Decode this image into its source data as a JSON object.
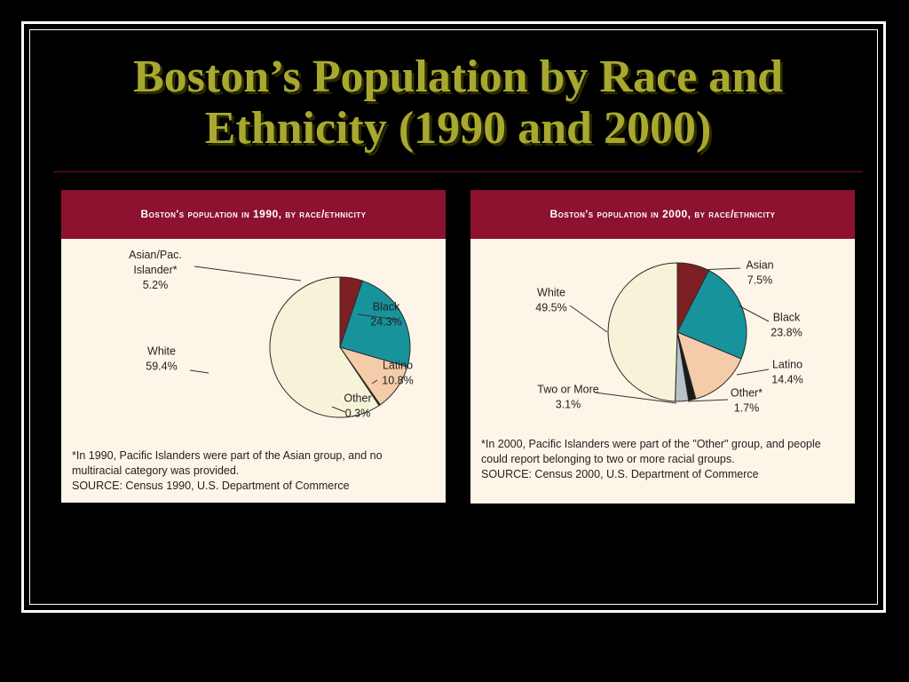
{
  "slide": {
    "title_line1": "Boston’s Population by Race and",
    "title_line2": "Ethnicity (1990 and 2000)"
  },
  "chart_data": [
    {
      "type": "pie",
      "title": "Boston's population in 1990, by race/ethnicity",
      "categories": [
        "Asian/Pac. Islander*",
        "Black",
        "Latino",
        "Other",
        "White"
      ],
      "values": [
        5.2,
        24.3,
        10.8,
        0.3,
        59.4
      ],
      "value_labels": [
        "5.2%",
        "24.3%",
        "10.8%",
        "0.3%",
        "59.4%"
      ],
      "colors": [
        "#7e1f24",
        "#17939c",
        "#f5ccaa",
        "#1a1a1a",
        "#f7f3d8"
      ],
      "label_lines": [
        [
          "Asian/Pac.",
          "Islander*",
          "5.2%"
        ],
        [
          "Black",
          "24.3%"
        ],
        [
          "Latino",
          "10.8%"
        ],
        [
          "Other",
          "0.3%"
        ],
        [
          "White",
          "59.4%"
        ]
      ],
      "footnote_lines": [
        "*In 1990, Pacific Islanders were part of the Asian group, and  no",
        "multiracial category was provided.",
        "SOURCE:  Census 1990, U.S. Department of Commerce"
      ]
    },
    {
      "type": "pie",
      "title": "Boston's population in 2000, by race/ethnicity",
      "categories": [
        "Asian",
        "Black",
        "Latino",
        "Other*",
        "Two or More",
        "White"
      ],
      "values": [
        7.5,
        23.8,
        14.4,
        1.7,
        3.1,
        49.5
      ],
      "value_labels": [
        "7.5%",
        "23.8%",
        "14.4%",
        "1.7%",
        "3.1%",
        "49.5%"
      ],
      "colors": [
        "#7e1f24",
        "#17939c",
        "#f5ccaa",
        "#1a1a1a",
        "#b8c2c8",
        "#f7f3d8"
      ],
      "label_lines": [
        [
          "Asian",
          "7.5%"
        ],
        [
          "Black",
          "23.8%"
        ],
        [
          "Latino",
          "14.4%"
        ],
        [
          "Other*",
          "1.7%"
        ],
        [
          "Two or More",
          "3.1%"
        ],
        [
          "White",
          "49.5%"
        ]
      ],
      "footnote_lines": [
        "*In 2000, Pacific Islanders were part of the \"Other\" group, and people",
        "could report belonging to two or more racial groups.",
        "SOURCE:  Census 2000, U.S. Department of Commerce"
      ]
    }
  ]
}
